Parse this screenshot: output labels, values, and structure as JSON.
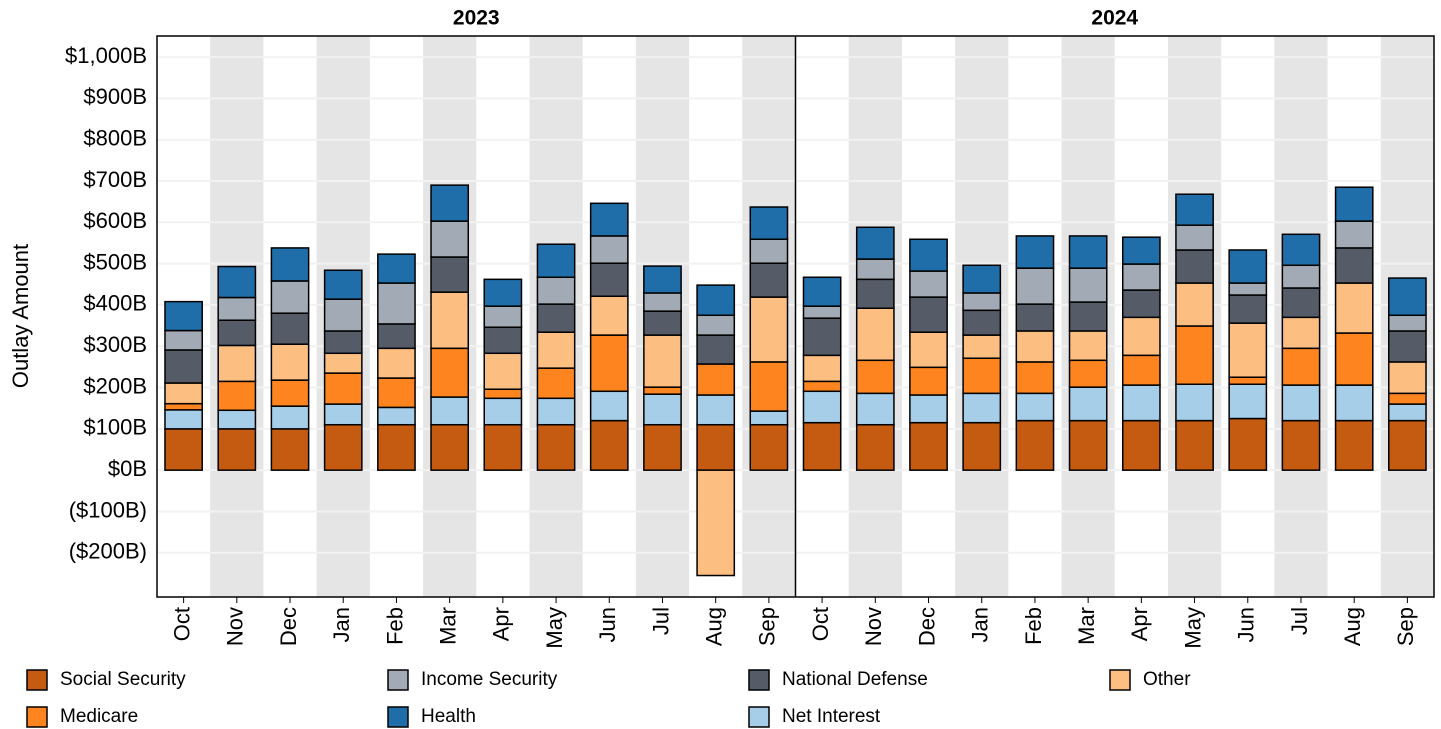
{
  "chart_data": {
    "type": "bar",
    "stacked": true,
    "y_label": "Outlay Amount",
    "facets": [
      "2023",
      "2024"
    ],
    "categories": [
      "Oct",
      "Nov",
      "Dec",
      "Jan",
      "Feb",
      "Mar",
      "Apr",
      "May",
      "Jun",
      "Jul",
      "Aug",
      "Sep",
      "Oct",
      "Nov",
      "Dec",
      "Jan",
      "Feb",
      "Mar",
      "Apr",
      "May",
      "Jun",
      "Jul",
      "Aug",
      "Sep"
    ],
    "ylim": [
      -307,
      1051
    ],
    "yticks": [
      {
        "value": -200,
        "label": "($200B)"
      },
      {
        "value": -100,
        "label": "($100B)"
      },
      {
        "value": 0,
        "label": "$0B"
      },
      {
        "value": 100,
        "label": "$100B"
      },
      {
        "value": 200,
        "label": "$200B"
      },
      {
        "value": 300,
        "label": "$300B"
      },
      {
        "value": 400,
        "label": "$400B"
      },
      {
        "value": 500,
        "label": "$500B"
      },
      {
        "value": 600,
        "label": "$600B"
      },
      {
        "value": 700,
        "label": "$700B"
      },
      {
        "value": 800,
        "label": "$800B"
      },
      {
        "value": 900,
        "label": "$900B"
      },
      {
        "value": 1000,
        "label": "$1,000B"
      }
    ],
    "grid": true,
    "series": [
      {
        "name": "Social Security",
        "color": "#c55a11",
        "values": [
          100,
          100,
          100,
          110,
          110,
          110,
          110,
          110,
          120,
          110,
          110,
          110,
          115,
          110,
          115,
          115,
          120,
          120,
          120,
          120,
          125,
          120,
          120,
          120
        ]
      },
      {
        "name": "Net Interest",
        "color": "#a6cee8",
        "values": [
          46,
          45,
          55,
          50,
          42,
          67,
          64,
          64,
          71,
          74,
          72,
          33,
          76,
          76,
          67,
          71,
          66,
          81,
          86,
          88,
          83,
          86,
          86,
          40
        ]
      },
      {
        "name": "Medicare",
        "color": "#fd841f",
        "values": [
          15,
          70,
          63,
          75,
          71,
          118,
          22,
          73,
          136,
          17,
          75,
          119,
          24,
          80,
          67,
          85,
          76,
          65,
          72,
          141,
          17,
          89,
          126,
          26
        ]
      },
      {
        "name": "Other",
        "color": "#fdbe81",
        "values": [
          50,
          87,
          87,
          48,
          72,
          136,
          87,
          87,
          94,
          126,
          -255,
          157,
          63,
          126,
          85,
          56,
          75,
          71,
          92,
          104,
          131,
          75,
          121,
          76
        ]
      },
      {
        "name": "National Defense",
        "color": "#555b67",
        "values": [
          80,
          61,
          75,
          54,
          59,
          85,
          63,
          68,
          80,
          58,
          70,
          82,
          90,
          70,
          85,
          60,
          65,
          70,
          66,
          80,
          68,
          71,
          85,
          75
        ]
      },
      {
        "name": "Income Security",
        "color": "#a2aab5",
        "values": [
          47,
          55,
          78,
          77,
          99,
          87,
          51,
          65,
          66,
          44,
          48,
          58,
          29,
          49,
          63,
          42,
          87,
          82,
          63,
          60,
          29,
          55,
          65,
          38
        ]
      },
      {
        "name": "Health",
        "color": "#1f6ea9",
        "values": [
          70,
          75,
          80,
          70,
          70,
          87,
          65,
          80,
          79,
          65,
          73,
          78,
          70,
          77,
          77,
          67,
          78,
          78,
          65,
          75,
          80,
          75,
          82,
          90
        ]
      }
    ]
  }
}
